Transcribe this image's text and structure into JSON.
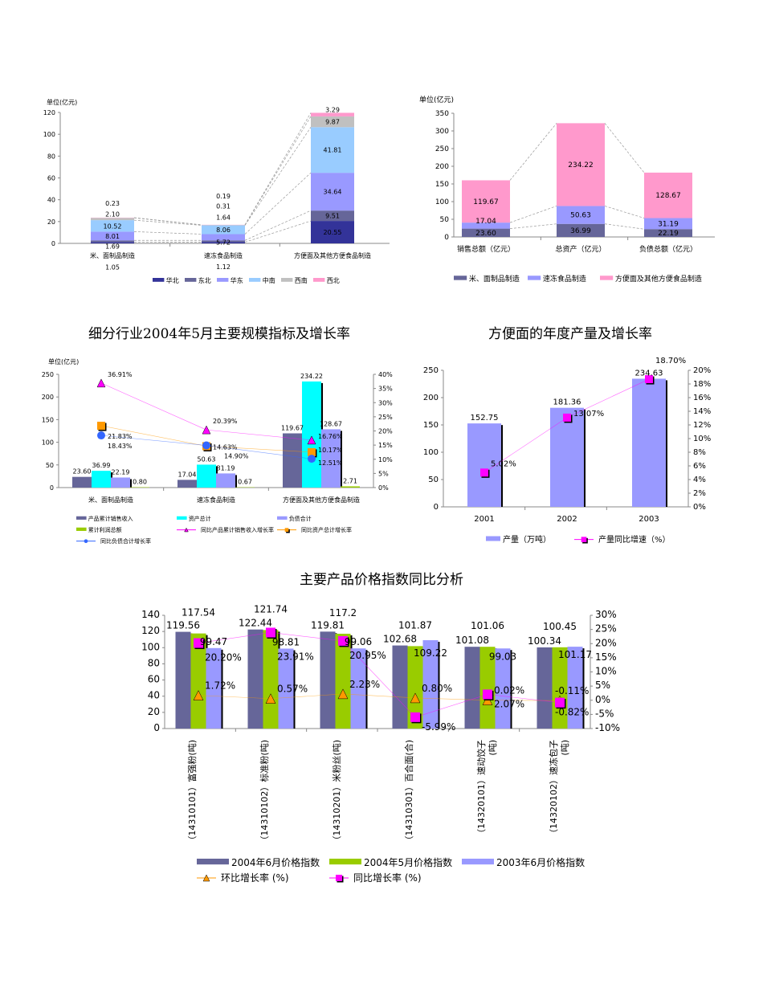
{
  "titles": {
    "t1": "细分行业2004年5月主要规模指标及增长率",
    "t2": "方便面的年度产量及增长率",
    "t3": "主要产品价格指数同比分析"
  },
  "chart_data": [
    {
      "id": "c1",
      "type": "stacked-bar",
      "unit_label": "单位(亿元)",
      "categories": [
        "米、面制品制造",
        "速冻食品制造",
        "方便面及其他方便食品制造"
      ],
      "ylim": [
        0,
        120
      ],
      "yticks": [
        0,
        20,
        40,
        60,
        80,
        100,
        120
      ],
      "legend": "bottom",
      "series": [
        {
          "name": "华北",
          "color": "#333399",
          "values": [
            1.05,
            1.12,
            20.55
          ]
        },
        {
          "name": "东北",
          "color": "#666699",
          "values": [
            1.69,
            1.64,
            9.51
          ]
        },
        {
          "name": "华东",
          "color": "#9999ff",
          "values": [
            8.01,
            5.72,
            34.64
          ]
        },
        {
          "name": "中南",
          "color": "#99ccff",
          "values": [
            10.52,
            8.06,
            41.81
          ]
        },
        {
          "name": "西南",
          "color": "#c0c0c0",
          "values": [
            2.1,
            0.31,
            9.87
          ]
        },
        {
          "name": "西北",
          "color": "#ff99cc",
          "values": [
            0.23,
            0.19,
            3.29
          ]
        }
      ]
    },
    {
      "id": "c2",
      "type": "stacked-bar",
      "unit_label": "单位(亿元)",
      "categories": [
        "销售总额（亿元）",
        "总资产（亿元）",
        "负债总额（亿元）"
      ],
      "ylim": [
        0,
        350
      ],
      "yticks": [
        0,
        50,
        100,
        150,
        200,
        250,
        300,
        350
      ],
      "legend": "bottom",
      "series": [
        {
          "name": "米、面制品制造",
          "color": "#666699",
          "values": [
            23.6,
            36.99,
            22.19
          ]
        },
        {
          "name": "速冻食品制造",
          "color": "#9999ff",
          "values": [
            17.04,
            50.63,
            31.19
          ]
        },
        {
          "name": "方便面及其他方便食品制造",
          "color": "#ff99cc",
          "values": [
            119.67,
            234.22,
            128.67
          ]
        }
      ]
    },
    {
      "id": "c3",
      "type": "bar+line",
      "unit_label": "单位(亿元)",
      "categories": [
        "米、面制品制造",
        "速冻食品制造",
        "方便面及其他方便食品制造"
      ],
      "ylim": [
        0,
        250
      ],
      "yticks": [
        0,
        50,
        100,
        150,
        200,
        250
      ],
      "y2lim": [
        0,
        40
      ],
      "y2ticks": [
        "0%",
        "5%",
        "10%",
        "15%",
        "20%",
        "25%",
        "30%",
        "35%",
        "40%"
      ],
      "legend": "bottom",
      "bars": [
        {
          "name": "产品累计销售收入",
          "color": "#666699",
          "values": [
            23.6,
            17.04,
            119.67
          ]
        },
        {
          "name": "资产总计",
          "color": "#00ffff",
          "values": [
            36.99,
            50.63,
            234.22
          ]
        },
        {
          "name": "负债合计",
          "color": "#9999ff",
          "values": [
            22.19,
            31.19,
            128.67
          ]
        },
        {
          "name": "累计利润总额",
          "color": "#99cc00",
          "values": [
            0.8,
            0.67,
            2.71
          ]
        }
      ],
      "lines": [
        {
          "name": "同比产品累计销售收入增长率",
          "color": "#ff00ff",
          "marker": "triangle",
          "values": [
            36.91,
            20.39,
            16.76
          ]
        },
        {
          "name": "同比资产总计增长率",
          "color": "#ff9900",
          "marker": "square",
          "values": [
            21.83,
            14.63,
            12.51
          ]
        },
        {
          "name": "同比负债合计增长率",
          "color": "#3366ff",
          "marker": "circle",
          "values": [
            18.43,
            14.9,
            10.17
          ]
        }
      ]
    },
    {
      "id": "c4",
      "type": "bar+line",
      "categories": [
        "2001",
        "2002",
        "2003"
      ],
      "ylim": [
        0,
        250
      ],
      "yticks": [
        0,
        50,
        100,
        150,
        200,
        250
      ],
      "y2lim": [
        0,
        20
      ],
      "y2ticks": [
        "0%",
        "2%",
        "4%",
        "6%",
        "8%",
        "10%",
        "12%",
        "14%",
        "16%",
        "18%",
        "20%"
      ],
      "legend": "bottom",
      "bars": [
        {
          "name": "产量（万吨）",
          "color": "#9999ff",
          "values": [
            152.75,
            181.36,
            234.63
          ]
        }
      ],
      "lines": [
        {
          "name": "产量同比增速（%）",
          "color": "#ff00ff",
          "marker": "square",
          "values": [
            5.02,
            13.07,
            18.7
          ]
        }
      ]
    },
    {
      "id": "c5",
      "type": "bar+line",
      "categories": [
        [
          "（14310101）富强粉(吨)"
        ],
        [
          "（14310102）标准粉(吨)"
        ],
        [
          "（14310201）米粉丝(吨)"
        ],
        [
          "（14310301）百合面(合)"
        ],
        [
          "（14320101）速动饺子",
          "(吨)"
        ],
        [
          "（14320102）速冻包子",
          "(吨)"
        ]
      ],
      "ylim": [
        0,
        140
      ],
      "yticks": [
        0,
        20,
        40,
        60,
        80,
        100,
        120,
        140
      ],
      "y2lim": [
        -10,
        30
      ],
      "y2ticks": [
        "-10%",
        "-5%",
        "0%",
        "5%",
        "10%",
        "15%",
        "20%",
        "25%",
        "30%"
      ],
      "legend": "bottom",
      "bars": [
        {
          "name": "2004年6月价格指数",
          "color": "#666699",
          "values": [
            119.56,
            122.44,
            119.81,
            102.68,
            101.08,
            100.34
          ]
        },
        {
          "name": "2004年5月价格指数",
          "color": "#99cc00",
          "values": [
            117.54,
            121.74,
            117.2,
            101.87,
            101.06,
            100.45
          ]
        },
        {
          "name": "2003年6月价格指数",
          "color": "#9999ff",
          "values": [
            99.47,
            98.81,
            99.06,
            109.22,
            99.03,
            101.17
          ]
        }
      ],
      "lines": [
        {
          "name": "环比增长率 (%)",
          "color": "#ff9900",
          "marker": "triangle",
          "values": [
            1.72,
            0.57,
            2.23,
            0.8,
            0.02,
            -0.11
          ]
        },
        {
          "name": "同比增长率 (%)",
          "color": "#ff00ff",
          "marker": "square",
          "values": [
            20.2,
            23.91,
            20.95,
            -5.99,
            2.07,
            -0.82
          ]
        }
      ]
    }
  ]
}
